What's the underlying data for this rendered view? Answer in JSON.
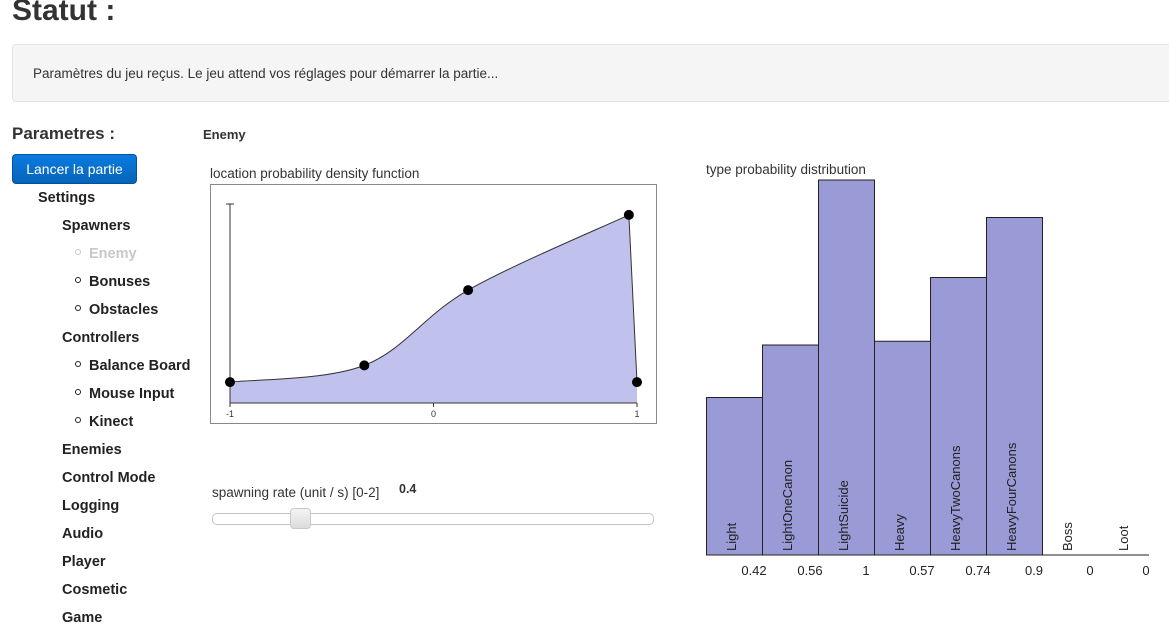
{
  "header": {
    "title": "Statut :"
  },
  "status": {
    "message": "Paramètres du jeu reçus. Le jeu attend vos réglages pour démarrer la partie..."
  },
  "sidebar": {
    "heading": "Parametres :",
    "launch_label": "Lancer la partie",
    "settings_label": "Settings",
    "groups": [
      {
        "label": "Spawners",
        "children": [
          "Enemy",
          "Bonuses",
          "Obstacles"
        ]
      },
      {
        "label": "Controllers",
        "children": [
          "Balance Board",
          "Mouse Input",
          "Kinect"
        ]
      }
    ],
    "items": [
      "Enemies",
      "Control Mode",
      "Logging",
      "Audio",
      "Player",
      "Cosmetic",
      "Game"
    ],
    "selected": "Enemy"
  },
  "main": {
    "section_label": "Enemy",
    "pdf": {
      "title": "location probability density function",
      "x_ticks": [
        "-1",
        "0",
        "1"
      ],
      "points": [
        {
          "x": -1,
          "y": 0.1
        },
        {
          "x": -0.34,
          "y": 0.18
        },
        {
          "x": 0.17,
          "y": 0.54
        },
        {
          "x": 0.96,
          "y": 0.9
        },
        {
          "x": 1,
          "y": 0.1
        }
      ],
      "fill_color": "#c0c1ec"
    },
    "spawn_rate": {
      "label": "spawning rate (unit / s) [0-2]",
      "value": "0.4",
      "min": 0,
      "max": 2,
      "current": 0.4
    },
    "distribution": {
      "title": "type probability distribution",
      "bar_color": "#9a9ad6"
    }
  },
  "chart_data": [
    {
      "type": "area",
      "title": "location probability density function",
      "x": [
        -1,
        -0.34,
        0.17,
        0.96,
        1
      ],
      "y": [
        0.1,
        0.18,
        0.54,
        0.9,
        0.1
      ],
      "x_ticks": [
        "-1",
        "0",
        "1"
      ],
      "xlim": [
        -1,
        1
      ],
      "ylim": [
        0,
        1
      ]
    },
    {
      "type": "bar",
      "title": "type probability distribution",
      "categories": [
        "Light",
        "LightOneCanon",
        "LightSuicide",
        "Heavy",
        "HeavyTwoCanons",
        "HeavyFourCanons",
        "Boss",
        "Loot"
      ],
      "values": [
        0.42,
        0.56,
        1,
        0.57,
        0.74,
        0.9,
        0,
        0
      ],
      "value_labels": [
        "0.42",
        "0.56",
        "1",
        "0.57",
        "0.74",
        "0.9",
        "0",
        "0"
      ],
      "ylim": [
        0,
        1
      ]
    }
  ]
}
